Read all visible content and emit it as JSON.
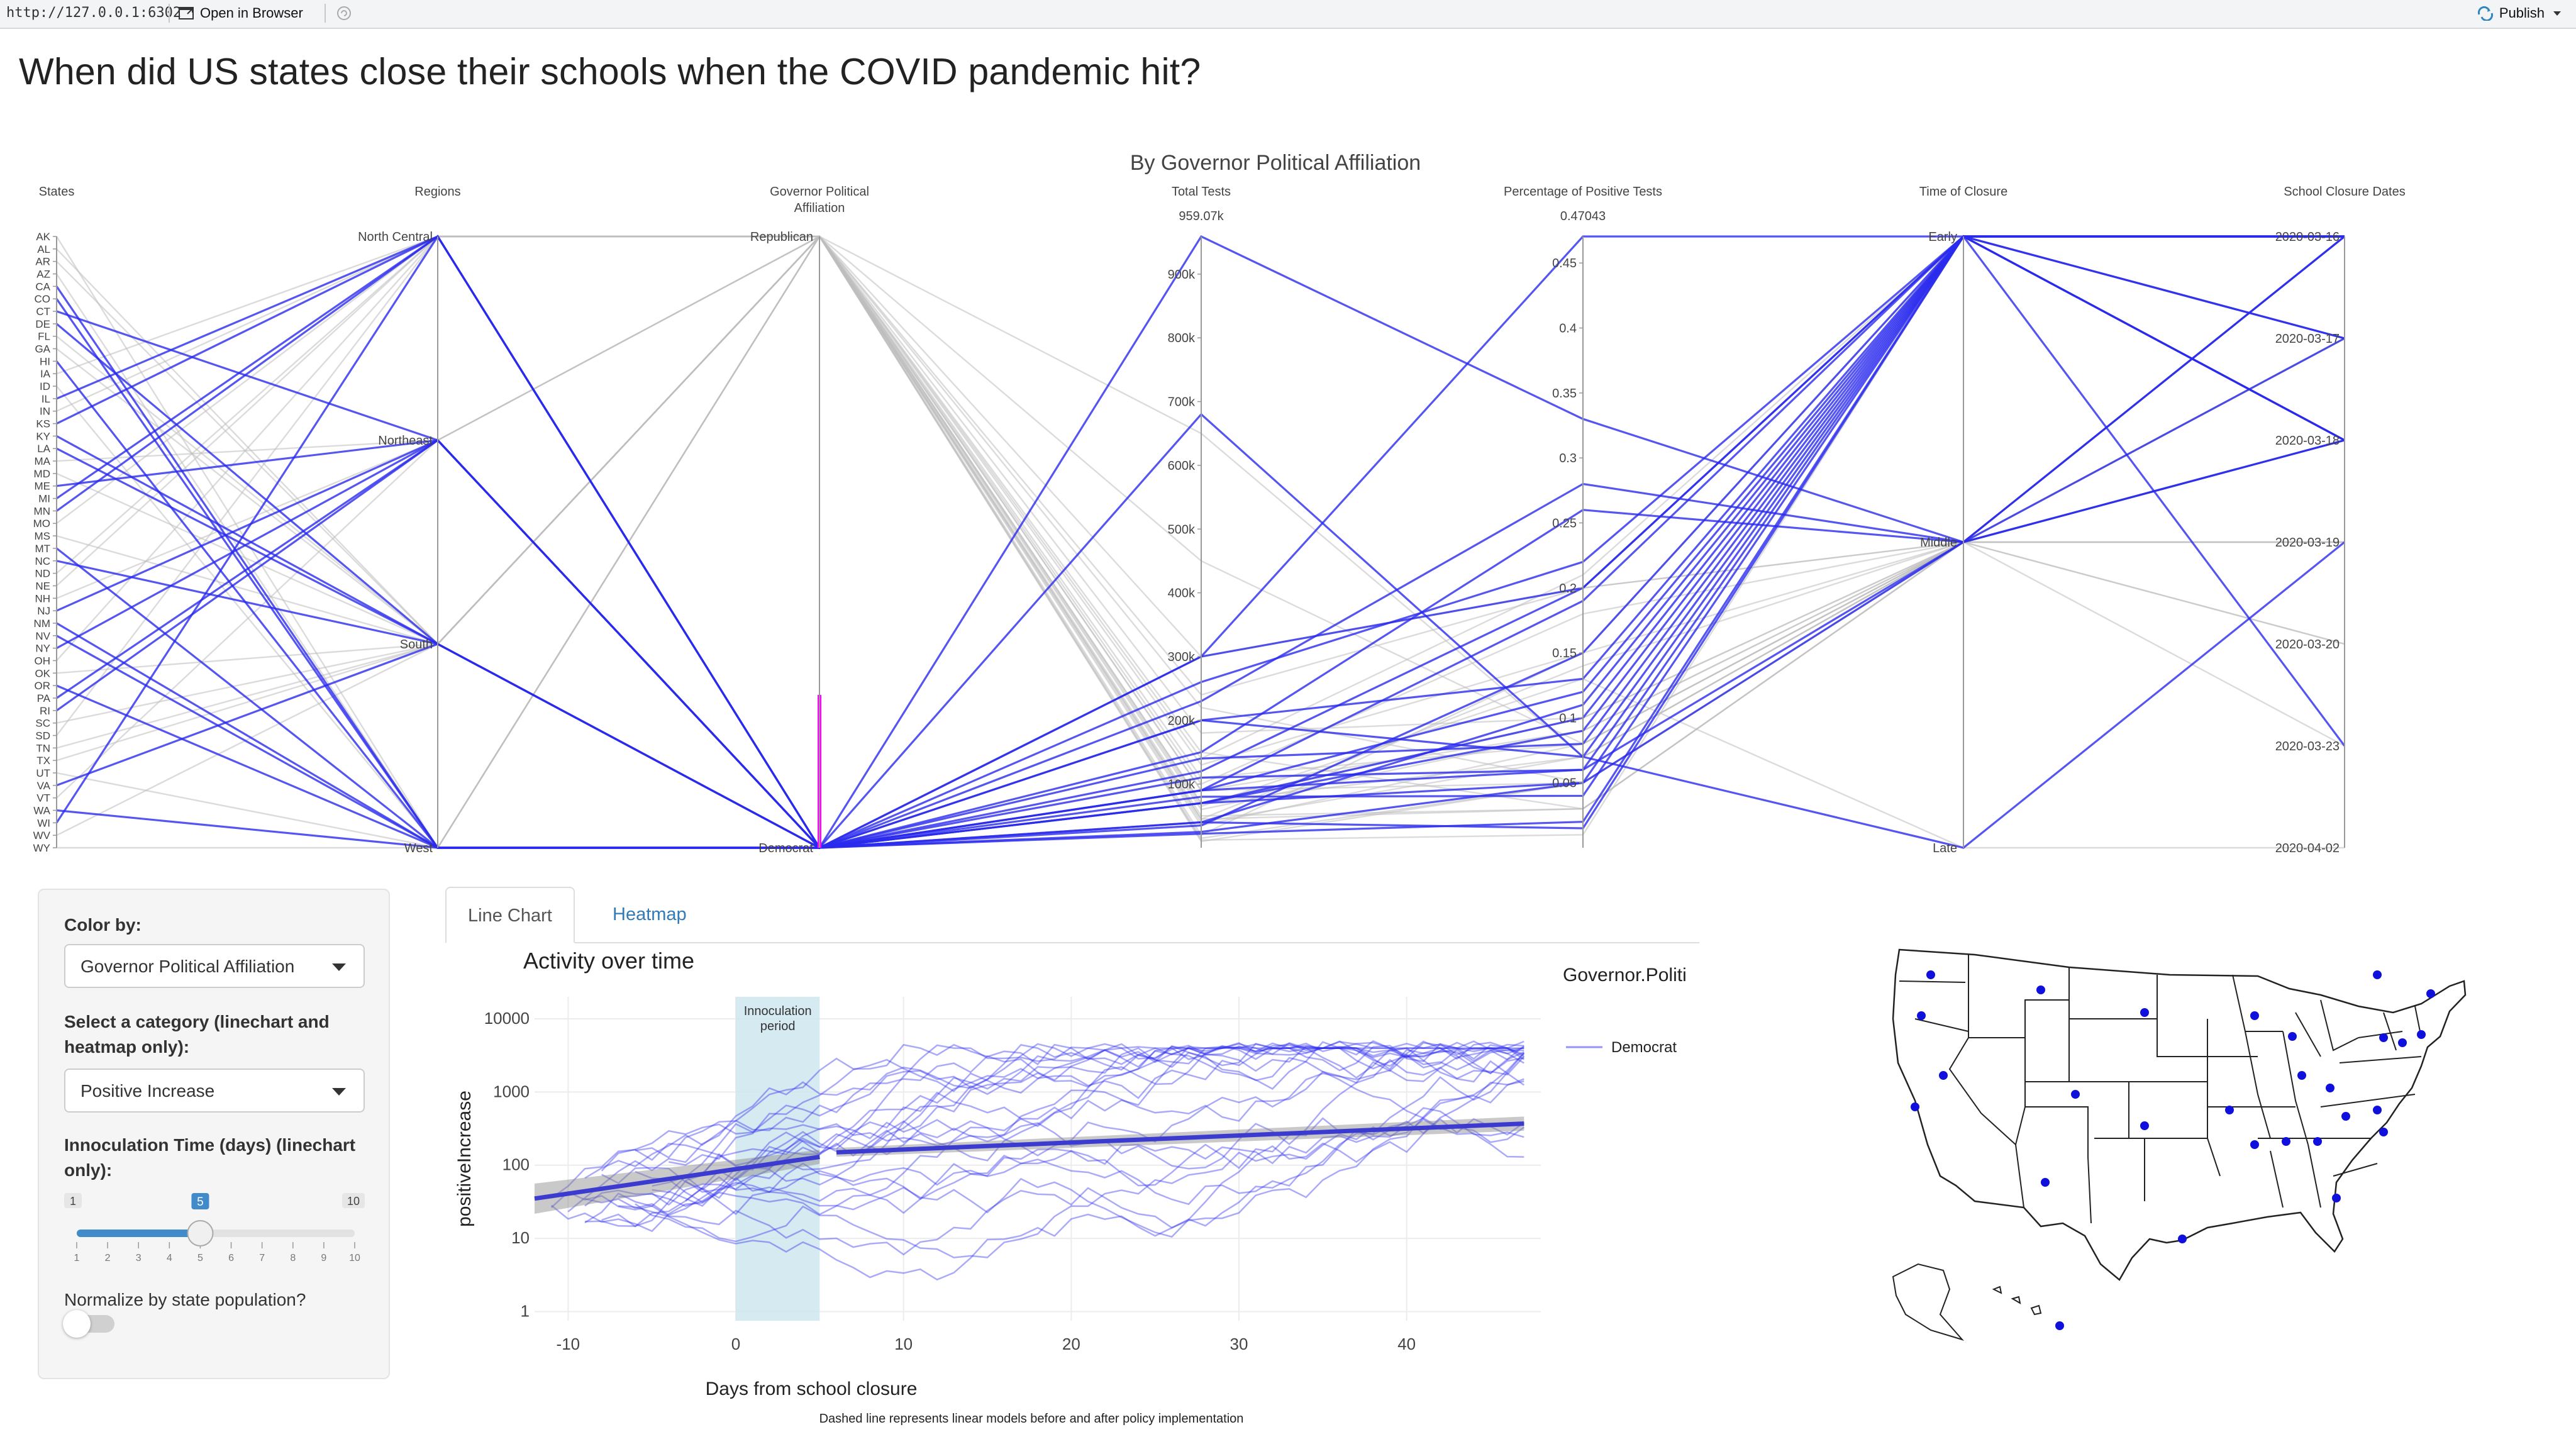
{
  "toolbar": {
    "url": "http://127.0.0.1:6302",
    "open_in_browser": "Open in Browser",
    "publish": "Publish"
  },
  "page_title": "When did US states close their schools when the COVID pandemic hit?",
  "colors": {
    "democrat": "#2a2aee",
    "republican": "#9a9a9a",
    "highlight": "#ff00ff",
    "band": "#cfe6ef",
    "trend": "#3b3bd0"
  },
  "chart_data": [
    {
      "type": "parallel-coordinates",
      "title": "By Governor Political Affiliation",
      "axes": [
        {
          "label": "States",
          "ticks": [
            "AK",
            "AL",
            "AR",
            "AZ",
            "CA",
            "CO",
            "CT",
            "DE",
            "FL",
            "GA",
            "HI",
            "IA",
            "ID",
            "IL",
            "IN",
            "KS",
            "KY",
            "LA",
            "MA",
            "MD",
            "ME",
            "MI",
            "MN",
            "MO",
            "MS",
            "MT",
            "NC",
            "ND",
            "NE",
            "NH",
            "NJ",
            "NM",
            "NV",
            "NY",
            "OH",
            "OK",
            "OR",
            "PA",
            "RI",
            "SC",
            "SD",
            "TN",
            "TX",
            "UT",
            "VA",
            "VT",
            "WA",
            "WI",
            "WV",
            "WY"
          ]
        },
        {
          "label": "Regions",
          "ticks": [
            "North Central",
            "Northeast",
            "South",
            "West"
          ]
        },
        {
          "label": "Governor Political Affiliation",
          "ticks": [
            "Republican",
            "Democrat"
          ]
        },
        {
          "label": "Total Tests",
          "max_label": "959.07k",
          "ticks": [
            "900k",
            "800k",
            "700k",
            "600k",
            "500k",
            "400k",
            "300k",
            "200k",
            "100k"
          ],
          "range": [
            0,
            959070
          ]
        },
        {
          "label": "Percentage of Positive Tests",
          "max_label": "0.47043",
          "ticks": [
            "0.45",
            "0.4",
            "0.35",
            "0.3",
            "0.25",
            "0.2",
            "0.15",
            "0.1",
            "0.05"
          ],
          "range": [
            0,
            0.47043
          ]
        },
        {
          "label": "Time of Closure",
          "ticks": [
            "Early",
            "Middle",
            "Late"
          ]
        },
        {
          "label": "School Closure Dates",
          "ticks": [
            "2020-03-16",
            "2020-03-17",
            "2020-03-18",
            "2020-03-19",
            "2020-03-20",
            "2020-03-23",
            "2020-04-02"
          ]
        }
      ],
      "highlighted_series": "Democrat",
      "lines": [
        {
          "state": "AK",
          "aff": "R",
          "tests": 12000,
          "pos": 0.01,
          "time": "Early",
          "date": "2020-03-16"
        },
        {
          "state": "AL",
          "aff": "R",
          "tests": 110000,
          "pos": 0.08,
          "time": "Middle",
          "date": "2020-03-18"
        },
        {
          "state": "AR",
          "aff": "R",
          "tests": 70000,
          "pos": 0.07,
          "time": "Middle",
          "date": "2020-03-17"
        },
        {
          "state": "AZ",
          "aff": "R",
          "tests": 180000,
          "pos": 0.1,
          "time": "Middle",
          "date": "2020-03-16"
        },
        {
          "state": "CA",
          "aff": "D",
          "tests": 680000,
          "pos": 0.07,
          "time": "Late",
          "date": "2020-03-19"
        },
        {
          "state": "CO",
          "aff": "D",
          "tests": 90000,
          "pos": 0.19,
          "time": "Early",
          "date": "2020-03-18"
        },
        {
          "state": "CT",
          "aff": "D",
          "tests": 150000,
          "pos": 0.26,
          "time": "Middle",
          "date": "2020-03-17"
        },
        {
          "state": "DE",
          "aff": "D",
          "tests": 35000,
          "pos": 0.15,
          "time": "Early",
          "date": "2020-03-16"
        },
        {
          "state": "FL",
          "aff": "R",
          "tests": 650000,
          "pos": 0.07,
          "time": "Middle",
          "date": "2020-03-17"
        },
        {
          "state": "GA",
          "aff": "R",
          "tests": 240000,
          "pos": 0.2,
          "time": "Middle",
          "date": "2020-03-18"
        },
        {
          "state": "HI",
          "aff": "D",
          "tests": 40000,
          "pos": 0.015,
          "time": "Early",
          "date": "2020-03-23"
        },
        {
          "state": "IA",
          "aff": "R",
          "tests": 65000,
          "pos": 0.13,
          "time": "Late",
          "date": "2020-04-02"
        },
        {
          "state": "ID",
          "aff": "R",
          "tests": 35000,
          "pos": 0.08,
          "time": "Middle",
          "date": "2020-03-20"
        },
        {
          "state": "IL",
          "aff": "D",
          "tests": 300000,
          "pos": 0.2,
          "time": "Early",
          "date": "2020-03-17"
        },
        {
          "state": "IN",
          "aff": "R",
          "tests": 100000,
          "pos": 0.18,
          "time": "Middle",
          "date": "2020-03-19"
        },
        {
          "state": "KS",
          "aff": "D",
          "tests": 40000,
          "pos": 0.11,
          "time": "Early",
          "date": "2020-03-18"
        },
        {
          "state": "KY",
          "aff": "D",
          "tests": 90000,
          "pos": 0.06,
          "time": "Early",
          "date": "2020-03-16"
        },
        {
          "state": "LA",
          "aff": "D",
          "tests": 200000,
          "pos": 0.13,
          "time": "Early",
          "date": "2020-03-16"
        },
        {
          "state": "MA",
          "aff": "R",
          "tests": 300000,
          "pos": 0.2,
          "time": "Middle",
          "date": "2020-03-17"
        },
        {
          "state": "MD",
          "aff": "R",
          "tests": 140000,
          "pos": 0.21,
          "time": "Early",
          "date": "2020-03-16"
        },
        {
          "state": "ME",
          "aff": "D",
          "tests": 25000,
          "pos": 0.05,
          "time": "Early",
          "date": "2020-03-16"
        },
        {
          "state": "MI",
          "aff": "D",
          "tests": 260000,
          "pos": 0.22,
          "time": "Early",
          "date": "2020-03-16"
        },
        {
          "state": "MN",
          "aff": "D",
          "tests": 110000,
          "pos": 0.06,
          "time": "Middle",
          "date": "2020-03-18"
        },
        {
          "state": "MO",
          "aff": "R",
          "tests": 90000,
          "pos": 0.09,
          "time": "Middle",
          "date": "2020-03-19"
        },
        {
          "state": "MS",
          "aff": "R",
          "tests": 70000,
          "pos": 0.1,
          "time": "Middle",
          "date": "2020-03-19"
        },
        {
          "state": "MT",
          "aff": "D",
          "tests": 22000,
          "pos": 0.02,
          "time": "Early",
          "date": "2020-03-16"
        },
        {
          "state": "NC",
          "aff": "D",
          "tests": 140000,
          "pos": 0.08,
          "time": "Early",
          "date": "2020-03-16"
        },
        {
          "state": "ND",
          "aff": "R",
          "tests": 45000,
          "pos": 0.03,
          "time": "Middle",
          "date": "2020-03-16"
        },
        {
          "state": "NE",
          "aff": "R",
          "tests": 45000,
          "pos": 0.14,
          "time": "Middle",
          "date": "2020-03-16"
        },
        {
          "state": "NH",
          "aff": "R",
          "tests": 40000,
          "pos": 0.07,
          "time": "Middle",
          "date": "2020-03-16"
        },
        {
          "state": "NJ",
          "aff": "D",
          "tests": 300000,
          "pos": 0.47043,
          "time": "Early",
          "date": "2020-03-18"
        },
        {
          "state": "NM",
          "aff": "D",
          "tests": 80000,
          "pos": 0.04,
          "time": "Early",
          "date": "2020-03-16"
        },
        {
          "state": "NV",
          "aff": "D",
          "tests": 70000,
          "pos": 0.09,
          "time": "Early",
          "date": "2020-03-16"
        },
        {
          "state": "NY",
          "aff": "D",
          "tests": 959070,
          "pos": 0.33,
          "time": "Middle",
          "date": "2020-03-18"
        },
        {
          "state": "OH",
          "aff": "R",
          "tests": 130000,
          "pos": 0.15,
          "time": "Early",
          "date": "2020-03-16"
        },
        {
          "state": "OK",
          "aff": "R",
          "tests": 90000,
          "pos": 0.05,
          "time": "Middle",
          "date": "2020-03-17"
        },
        {
          "state": "OR",
          "aff": "D",
          "tests": 70000,
          "pos": 0.05,
          "time": "Middle",
          "date": "2020-03-16"
        },
        {
          "state": "PA",
          "aff": "D",
          "tests": 230000,
          "pos": 0.28,
          "time": "Middle",
          "date": "2020-03-16"
        },
        {
          "state": "RI",
          "aff": "D",
          "tests": 90000,
          "pos": 0.12,
          "time": "Early",
          "date": "2020-03-16"
        },
        {
          "state": "SC",
          "aff": "R",
          "tests": 60000,
          "pos": 0.09,
          "time": "Middle",
          "date": "2020-03-16"
        },
        {
          "state": "SD",
          "aff": "R",
          "tests": 20000,
          "pos": 0.15,
          "time": "Middle",
          "date": "2020-03-16"
        },
        {
          "state": "TN",
          "aff": "R",
          "tests": 220000,
          "pos": 0.05,
          "time": "Middle",
          "date": "2020-03-20"
        },
        {
          "state": "TX",
          "aff": "R",
          "tests": 450000,
          "pos": 0.08,
          "time": "Middle",
          "date": "2020-03-23"
        },
        {
          "state": "UT",
          "aff": "R",
          "tests": 150000,
          "pos": 0.03,
          "time": "Middle",
          "date": "2020-03-16"
        },
        {
          "state": "VA",
          "aff": "D",
          "tests": 120000,
          "pos": 0.2,
          "time": "Early",
          "date": "2020-03-16"
        },
        {
          "state": "VT",
          "aff": "R",
          "tests": 15000,
          "pos": 0.05,
          "time": "Middle",
          "date": "2020-03-18"
        },
        {
          "state": "WA",
          "aff": "D",
          "tests": 200000,
          "pos": 0.07,
          "time": "Early",
          "date": "2020-03-17"
        },
        {
          "state": "WI",
          "aff": "D",
          "tests": 70000,
          "pos": 0.1,
          "time": "Early",
          "date": "2020-03-18"
        },
        {
          "state": "WV",
          "aff": "R",
          "tests": 50000,
          "pos": 0.03,
          "time": "Middle",
          "date": "2020-03-16"
        },
        {
          "state": "WY",
          "aff": "R",
          "tests": 10000,
          "pos": 0.05,
          "time": "Middle",
          "date": "2020-03-16"
        }
      ]
    },
    {
      "type": "line",
      "title": "Activity over time",
      "xlabel": "Days from school closure",
      "ylabel": "positiveIncrease",
      "caption": "Dashed line represents linear models before and after policy implementation",
      "x_ticks": [
        "-10",
        "0",
        "10",
        "20",
        "30",
        "40"
      ],
      "y_ticks": [
        "10000",
        "1000",
        "100",
        "10",
        "1"
      ],
      "xlim": [
        -12,
        48
      ],
      "y_scale": "log",
      "ylim": [
        0.75,
        20000
      ],
      "band": {
        "x0": 0,
        "x1": 5,
        "label_lines": [
          "Innoculation",
          "period"
        ]
      },
      "legend_title": "Governor.Politi",
      "legend_items": [
        "Democrat"
      ],
      "trend_before": [
        [
          -12,
          35
        ],
        [
          5,
          130
        ]
      ],
      "trend_after": [
        [
          6,
          150
        ],
        [
          47,
          370
        ]
      ],
      "series_count": 23
    }
  ],
  "sidebar": {
    "color_by_label": "Color by:",
    "color_by_value": "Governor Political Affiliation",
    "category_label_1": "Select a category (linechart and",
    "category_label_2": "heatmap only):",
    "category_value": "Positive Increase",
    "slider_label_1": "Innoculation Time (days) (linechart",
    "slider_label_2": "only):",
    "slider_min": "1",
    "slider_max": "10",
    "slider_value": "5",
    "slider_ticks": [
      "1",
      "2",
      "3",
      "4",
      "5",
      "6",
      "7",
      "8",
      "9",
      "10"
    ],
    "normalize_label": "Normalize by state population?"
  },
  "tabs": {
    "line_chart": "Line Chart",
    "heatmap": "Heatmap"
  },
  "map": {
    "marker_color": "#1010dd"
  }
}
